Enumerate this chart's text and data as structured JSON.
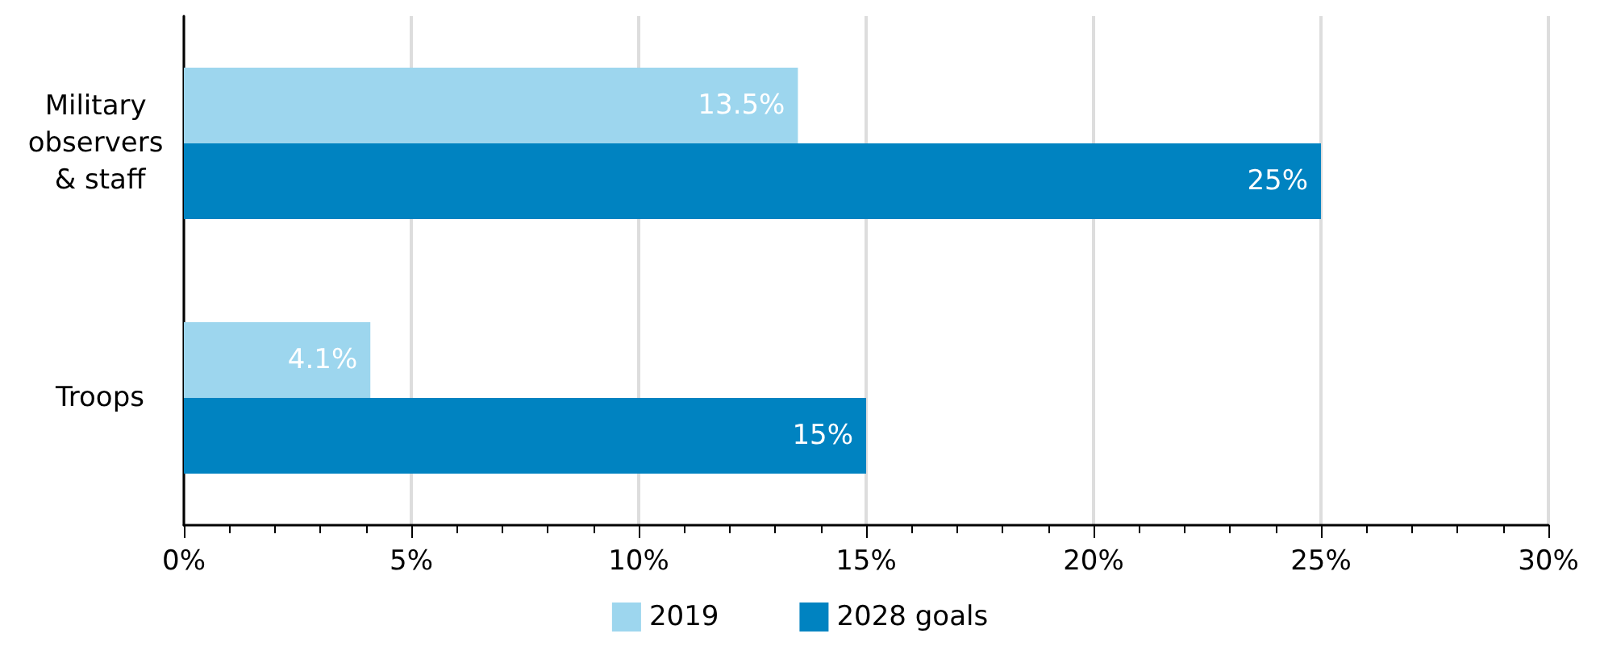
{
  "chart_data": {
    "type": "bar",
    "orientation": "horizontal",
    "categories": [
      "Military observers & staff",
      "Troops"
    ],
    "series": [
      {
        "name": "2019",
        "color": "#9dd6ee",
        "values": [
          13.5,
          4.1
        ],
        "value_labels": [
          "13.5%",
          "4.1%"
        ]
      },
      {
        "name": "2028 goals",
        "color": "#0083c1",
        "values": [
          25,
          15
        ],
        "value_labels": [
          "25%",
          "15%"
        ]
      }
    ],
    "xlim": [
      0,
      30
    ],
    "xticks": [
      {
        "value": 0,
        "label": "0%"
      },
      {
        "value": 5,
        "label": "5%"
      },
      {
        "value": 10,
        "label": "10%"
      },
      {
        "value": 15,
        "label": "15%"
      },
      {
        "value": 20,
        "label": "20%"
      },
      {
        "value": 25,
        "label": "25%"
      },
      {
        "value": 30,
        "label": "30%"
      }
    ],
    "grid": "x",
    "legend": "bottom"
  }
}
